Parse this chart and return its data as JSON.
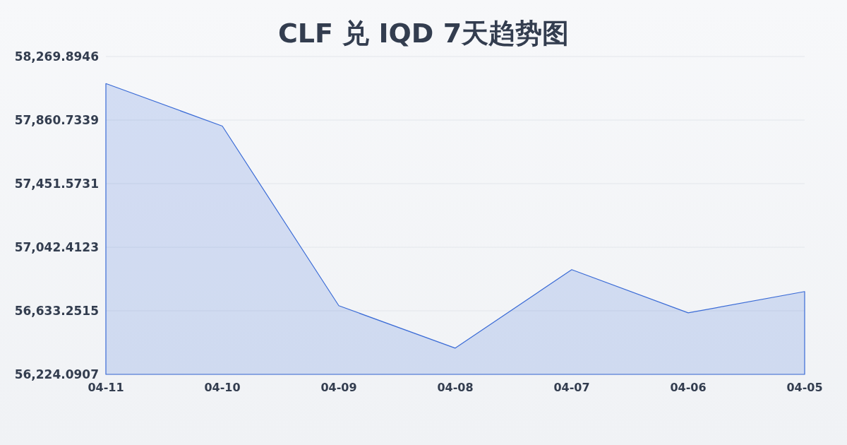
{
  "chart_data": {
    "type": "area",
    "title": "CLF 兑 IQD 7天趋势图",
    "categories": [
      "04-11",
      "04-10",
      "04-09",
      "04-08",
      "04-07",
      "04-06",
      "04-05"
    ],
    "series": [
      {
        "color": "#3a6bd6",
        "values": [
          58096,
          57822,
          56666,
          56393,
          56898,
          56620,
          56757
        ]
      }
    ],
    "ylim": [
      56224.0907,
      58269.8946
    ],
    "yticks": [
      {
        "value": 56224.0907,
        "label": "56,224.0907"
      },
      {
        "value": 56633.2515,
        "label": "56,633.2515"
      },
      {
        "value": 57042.4123,
        "label": "57,042.4123"
      },
      {
        "value": 57451.5731,
        "label": "57,451.5731"
      },
      {
        "value": 57860.7339,
        "label": "57,860.7339"
      },
      {
        "value": 58269.8946,
        "label": "58,269.8946"
      }
    ],
    "grid": "y"
  }
}
